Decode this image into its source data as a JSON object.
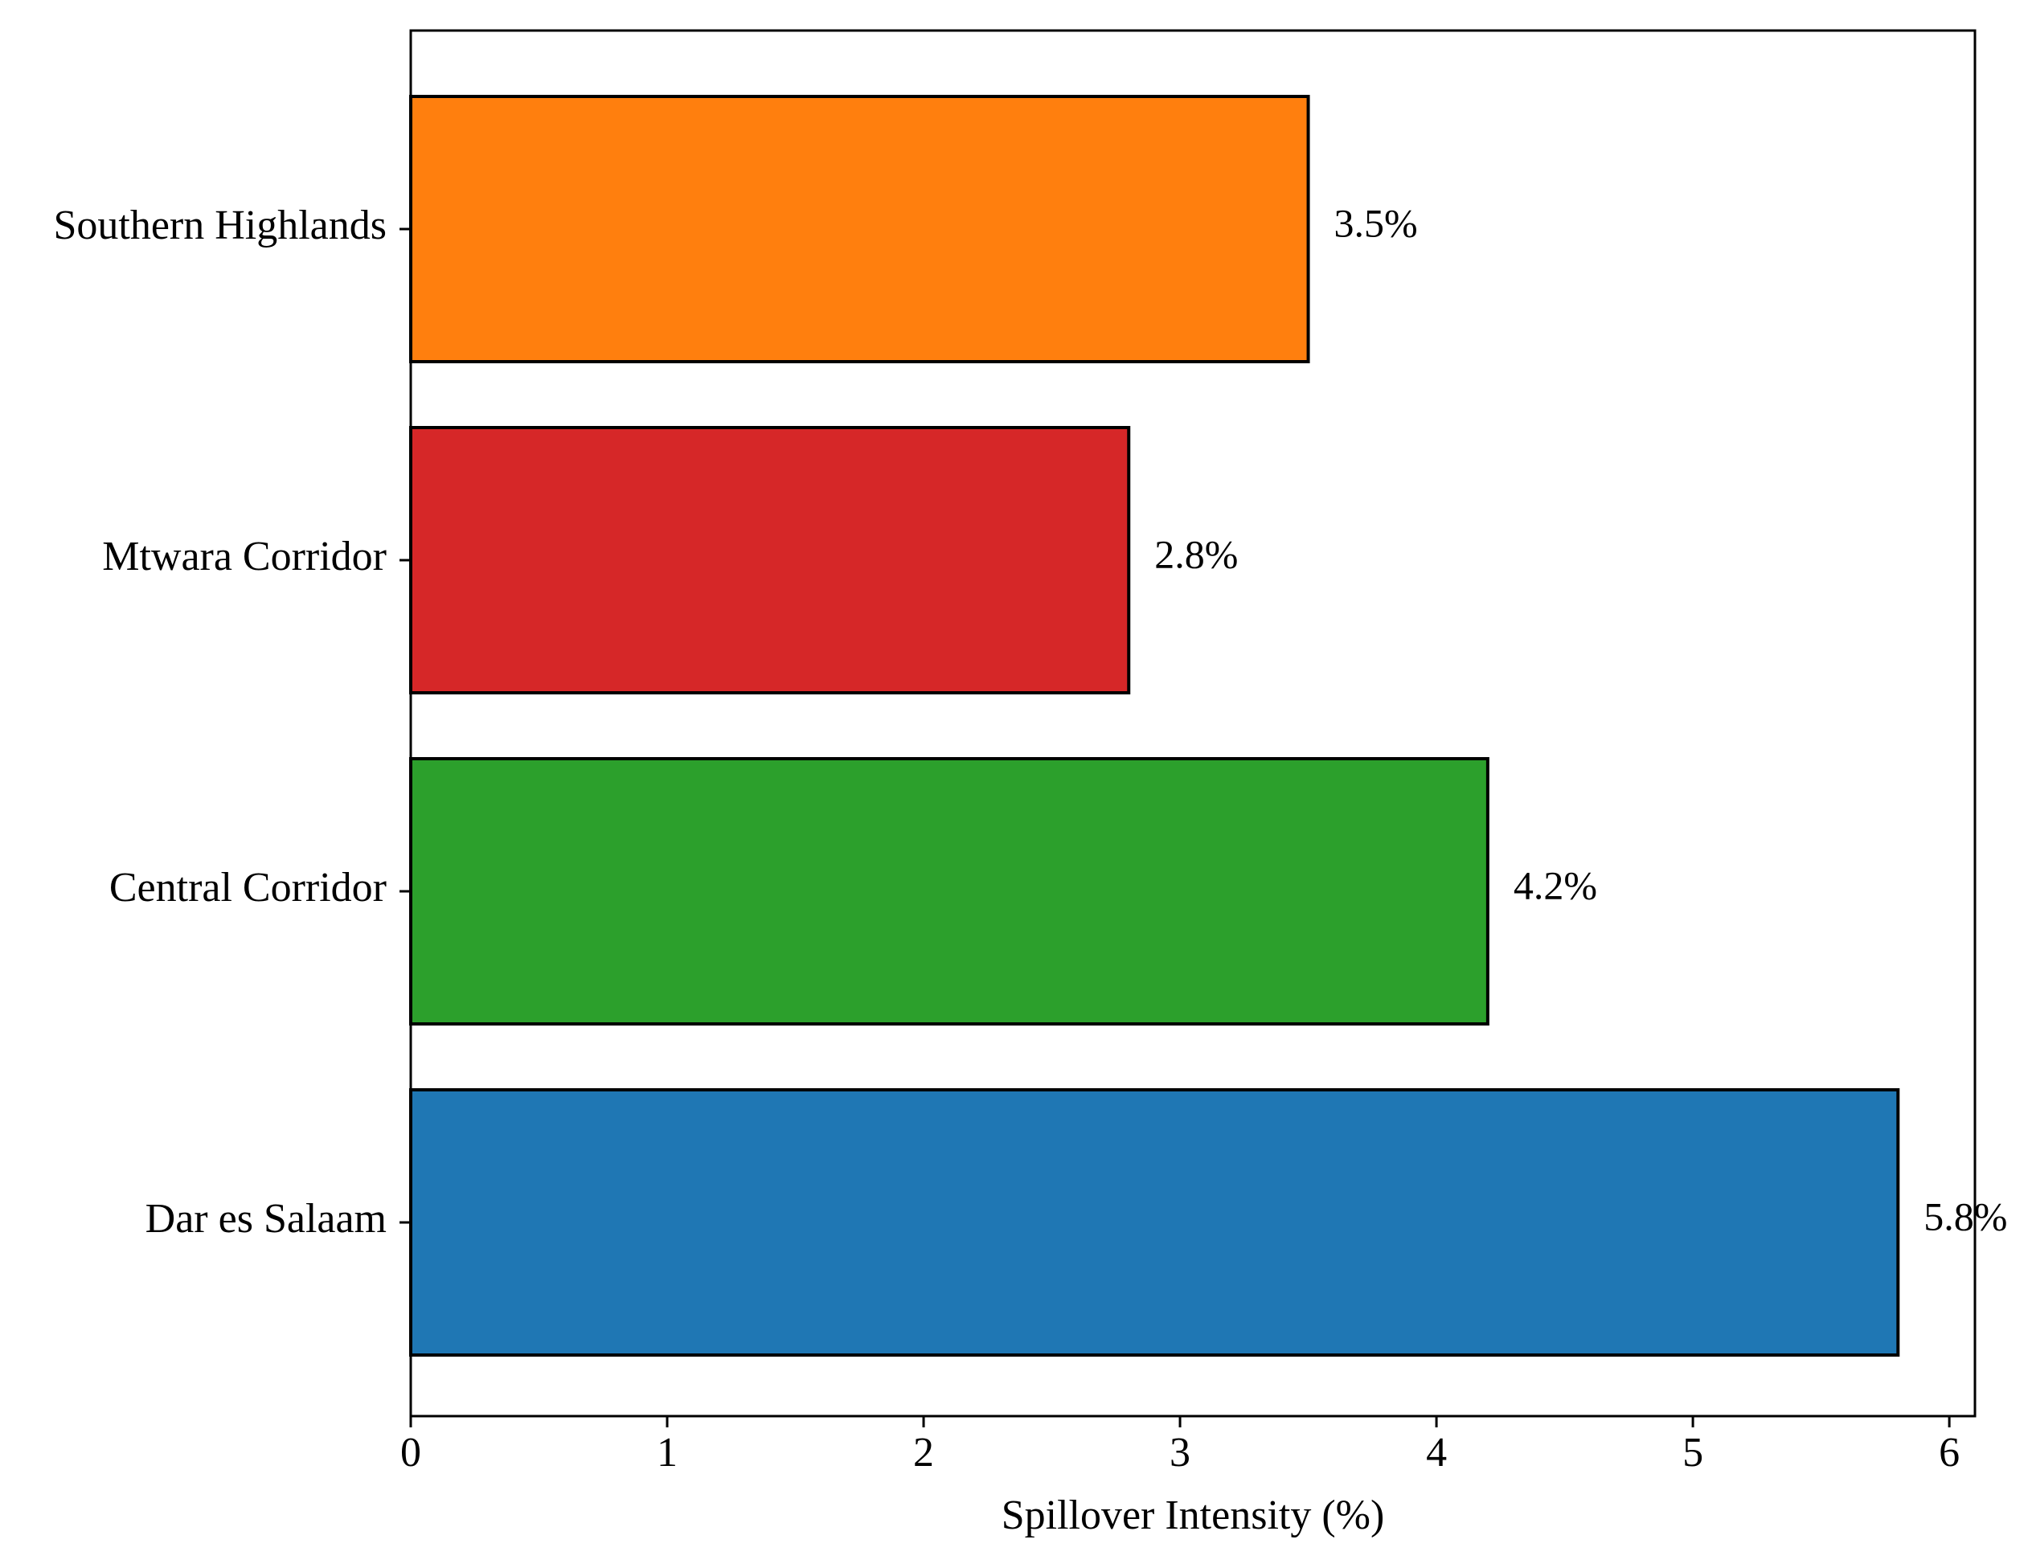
{
  "chart_data": {
    "type": "bar",
    "orientation": "horizontal",
    "categories": [
      "Dar es Salaam",
      "Central Corridor",
      "Mtwara Corridor",
      "Southern Highlands"
    ],
    "values": [
      5.8,
      4.2,
      2.8,
      3.5
    ],
    "data_labels": [
      "5.8%",
      "4.2%",
      "2.8%",
      "3.5%"
    ],
    "colors": [
      "#1f77b4",
      "#2ca02c",
      "#d62728",
      "#ff7f0e"
    ],
    "title": "",
    "xlabel": "Spillover Intensity (%)",
    "ylabel": "",
    "xlim": [
      0,
      6.1
    ],
    "xticks": [
      0,
      1,
      2,
      3,
      4,
      5,
      6
    ],
    "xtick_labels": [
      "0",
      "1",
      "2",
      "3",
      "4",
      "5",
      "6"
    ],
    "grid": false,
    "legend": "none"
  }
}
